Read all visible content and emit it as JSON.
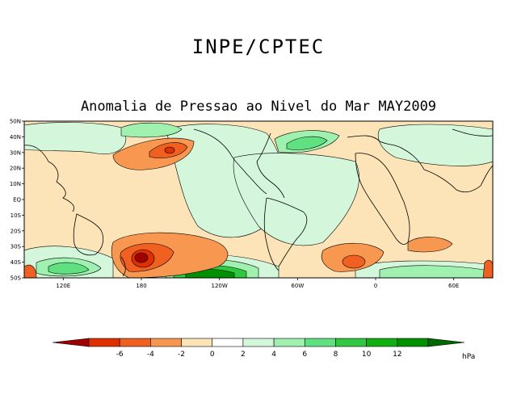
{
  "header": {
    "title": "INPE/CPTEC"
  },
  "map": {
    "title": "Anomalia de Pressao ao Nivel do Mar MAY2009",
    "lat_labels": [
      "50N",
      "40N",
      "30N",
      "20N",
      "10N",
      "EQ",
      "10S",
      "20S",
      "30S",
      "40S",
      "50S"
    ],
    "lon_labels": [
      "120E",
      "180",
      "120W",
      "60W",
      "0",
      "60E"
    ]
  },
  "colorbar": {
    "tick_labels": [
      "-6",
      "-4",
      "-2",
      "0",
      "2",
      "4",
      "6",
      "8",
      "10",
      "12"
    ],
    "unit": "hPa",
    "colors": [
      "#a00000",
      "#e03000",
      "#f06020",
      "#f89850",
      "#fde3b8",
      "#ffffff",
      "#d4f7dc",
      "#a0f0b0",
      "#60e080",
      "#30c840",
      "#10b010",
      "#009000",
      "#006800"
    ]
  }
}
